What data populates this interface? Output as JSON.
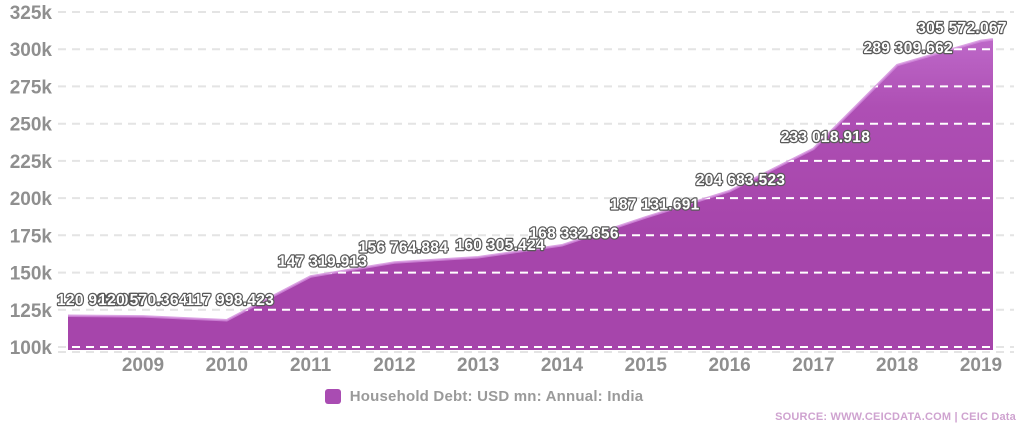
{
  "chart_data": {
    "type": "area",
    "title": "",
    "xlabel": "",
    "ylabel": "",
    "x_axis": {
      "years": [
        "2009",
        "2010",
        "2011",
        "2012",
        "2013",
        "2014",
        "2015",
        "2016",
        "2017",
        "2018",
        "2019"
      ]
    },
    "y_axis": {
      "min": 100000,
      "max": 325000,
      "tick_step": 25000,
      "tick_labels": [
        "325k",
        "300k",
        "275k",
        "250k",
        "225k",
        "200k",
        "175k",
        "150k",
        "125k",
        "100k"
      ],
      "grid": "dashed"
    },
    "series": [
      {
        "name": "Household Debt: USD mn: Annual: India",
        "points": [
          {
            "year": 2008,
            "value": 120982.057,
            "label": "120 982.057"
          },
          {
            "year": 2009,
            "value": 120570.364,
            "label": "120 570.364"
          },
          {
            "year": 2010,
            "value": 117998.423,
            "label": "117 998.423"
          },
          {
            "year": 2011,
            "value": 147319.913,
            "label": "147 319.913"
          },
          {
            "year": 2012,
            "value": 156764.884,
            "label": "156 764.884"
          },
          {
            "year": 2013,
            "value": 160305.424,
            "label": "160 305.424"
          },
          {
            "year": 2014,
            "value": 168332.856,
            "label": "168 332.856"
          },
          {
            "year": 2015,
            "value": 187131.691,
            "label": "187 131.691"
          },
          {
            "year": 2016,
            "value": 204683.523,
            "label": "204 683.523"
          },
          {
            "year": 2017,
            "value": 233018.918,
            "label": "233 018.918"
          },
          {
            "year": 2018,
            "value": 289309.662,
            "label": "289 309.662"
          },
          {
            "year": 2019,
            "value": 305572.067,
            "label": "305 572.067"
          }
        ]
      }
    ],
    "legend": {
      "label": "Household Debt: USD mn: Annual: India",
      "position": "bottom-center"
    },
    "source": "SOURCE: WWW.CEICDATA.COM | CEIC Data",
    "colors": {
      "area_top": "#bd68c8",
      "area_mid": "#ae4fb4",
      "area_main": "#a645ab",
      "area_edge_highlight": "#d28cdc",
      "legend_square": "#a94cb2",
      "axis_text": "#8f8f8f",
      "legend_text": "#9a9a9a",
      "data_label_fill": "#ffffff",
      "data_label_outline": "#5a5a5a",
      "gridline": "#e4e4e4",
      "gridline_on_area": "#ffffff",
      "source_text": "#cfa3d0"
    }
  }
}
